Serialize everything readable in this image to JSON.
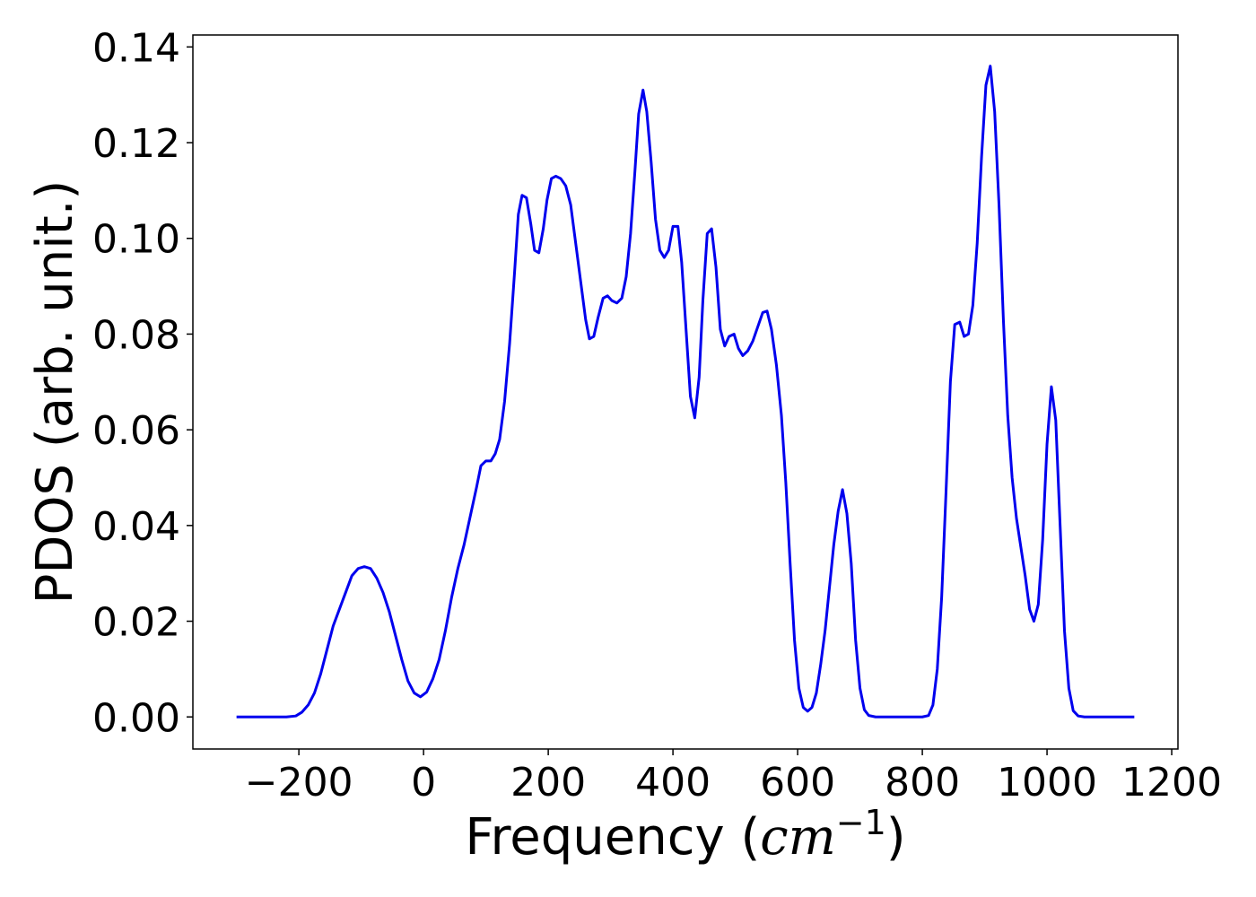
{
  "chart_data": {
    "type": "line",
    "xlabel": "Frequency (",
    "xlabel_unit_base": "cm",
    "xlabel_unit_exp": "−1",
    "xlabel_close": ")",
    "ylabel": "PDOS (arb. unit.)",
    "xlim": [
      -370,
      1210
    ],
    "ylim": [
      -0.0067,
      0.1425
    ],
    "x_ticks": [
      -200,
      0,
      200,
      400,
      600,
      800,
      1000,
      1200
    ],
    "x_tick_labels": [
      "−200",
      "0",
      "200",
      "400",
      "600",
      "800",
      "1000",
      "1200"
    ],
    "y_ticks": [
      0.0,
      0.02,
      0.04,
      0.06,
      0.08,
      0.1,
      0.12,
      0.14
    ],
    "y_tick_labels": [
      "0.00",
      "0.02",
      "0.04",
      "0.06",
      "0.08",
      "0.10",
      "0.12",
      "0.14"
    ],
    "grid": false,
    "series": [
      {
        "color": "#0000ee",
        "points": [
          [
            -300,
            0.0
          ],
          [
            -220,
            0.0
          ],
          [
            -205,
            0.0002
          ],
          [
            -195,
            0.001
          ],
          [
            -185,
            0.0025
          ],
          [
            -175,
            0.005
          ],
          [
            -165,
            0.009
          ],
          [
            -155,
            0.014
          ],
          [
            -145,
            0.019
          ],
          [
            -135,
            0.0225
          ],
          [
            -125,
            0.026
          ],
          [
            -115,
            0.0295
          ],
          [
            -105,
            0.031
          ],
          [
            -95,
            0.0314
          ],
          [
            -85,
            0.031
          ],
          [
            -75,
            0.029
          ],
          [
            -65,
            0.026
          ],
          [
            -55,
            0.022
          ],
          [
            -45,
            0.017
          ],
          [
            -35,
            0.012
          ],
          [
            -25,
            0.0075
          ],
          [
            -15,
            0.005
          ],
          [
            -5,
            0.0042
          ],
          [
            5,
            0.0052
          ],
          [
            15,
            0.008
          ],
          [
            25,
            0.012
          ],
          [
            35,
            0.018
          ],
          [
            45,
            0.025
          ],
          [
            55,
            0.031
          ],
          [
            65,
            0.036
          ],
          [
            75,
            0.042
          ],
          [
            85,
            0.048
          ],
          [
            92,
            0.0525
          ],
          [
            100,
            0.0535
          ],
          [
            108,
            0.0535
          ],
          [
            115,
            0.055
          ],
          [
            122,
            0.058
          ],
          [
            130,
            0.066
          ],
          [
            138,
            0.078
          ],
          [
            146,
            0.093
          ],
          [
            152,
            0.105
          ],
          [
            158,
            0.109
          ],
          [
            165,
            0.1085
          ],
          [
            172,
            0.103
          ],
          [
            178,
            0.0975
          ],
          [
            185,
            0.097
          ],
          [
            192,
            0.102
          ],
          [
            198,
            0.108
          ],
          [
            205,
            0.1125
          ],
          [
            212,
            0.113
          ],
          [
            220,
            0.1125
          ],
          [
            228,
            0.111
          ],
          [
            236,
            0.107
          ],
          [
            244,
            0.099
          ],
          [
            252,
            0.091
          ],
          [
            260,
            0.083
          ],
          [
            266,
            0.079
          ],
          [
            273,
            0.0795
          ],
          [
            280,
            0.0835
          ],
          [
            288,
            0.0875
          ],
          [
            295,
            0.088
          ],
          [
            302,
            0.087
          ],
          [
            310,
            0.0865
          ],
          [
            318,
            0.0875
          ],
          [
            325,
            0.092
          ],
          [
            332,
            0.101
          ],
          [
            339,
            0.114
          ],
          [
            345,
            0.126
          ],
          [
            352,
            0.131
          ],
          [
            358,
            0.1265
          ],
          [
            365,
            0.116
          ],
          [
            372,
            0.104
          ],
          [
            379,
            0.0975
          ],
          [
            386,
            0.096
          ],
          [
            393,
            0.0975
          ],
          [
            400,
            0.1025
          ],
          [
            408,
            0.1025
          ],
          [
            414,
            0.095
          ],
          [
            421,
            0.081
          ],
          [
            428,
            0.067
          ],
          [
            435,
            0.0625
          ],
          [
            442,
            0.071
          ],
          [
            448,
            0.087
          ],
          [
            455,
            0.101
          ],
          [
            462,
            0.102
          ],
          [
            469,
            0.094
          ],
          [
            476,
            0.081
          ],
          [
            483,
            0.0775
          ],
          [
            490,
            0.0795
          ],
          [
            498,
            0.08
          ],
          [
            505,
            0.077
          ],
          [
            512,
            0.0755
          ],
          [
            520,
            0.0765
          ],
          [
            528,
            0.0785
          ],
          [
            536,
            0.0815
          ],
          [
            544,
            0.0845
          ],
          [
            551,
            0.0848
          ],
          [
            558,
            0.081
          ],
          [
            566,
            0.0735
          ],
          [
            574,
            0.063
          ],
          [
            581,
            0.049
          ],
          [
            588,
            0.032
          ],
          [
            595,
            0.016
          ],
          [
            602,
            0.006
          ],
          [
            609,
            0.002
          ],
          [
            616,
            0.0012
          ],
          [
            623,
            0.002
          ],
          [
            630,
            0.005
          ],
          [
            637,
            0.011
          ],
          [
            644,
            0.018
          ],
          [
            651,
            0.027
          ],
          [
            658,
            0.036
          ],
          [
            665,
            0.043
          ],
          [
            672,
            0.0475
          ],
          [
            679,
            0.0425
          ],
          [
            686,
            0.032
          ],
          [
            693,
            0.016
          ],
          [
            700,
            0.006
          ],
          [
            707,
            0.0015
          ],
          [
            714,
            0.0003
          ],
          [
            725,
            0.0
          ],
          [
            800,
            0.0
          ],
          [
            810,
            0.0003
          ],
          [
            817,
            0.0025
          ],
          [
            824,
            0.01
          ],
          [
            831,
            0.025
          ],
          [
            838,
            0.047
          ],
          [
            845,
            0.07
          ],
          [
            852,
            0.082
          ],
          [
            860,
            0.0825
          ],
          [
            867,
            0.0795
          ],
          [
            874,
            0.08
          ],
          [
            881,
            0.086
          ],
          [
            888,
            0.099
          ],
          [
            895,
            0.117
          ],
          [
            902,
            0.132
          ],
          [
            909,
            0.136
          ],
          [
            916,
            0.1265
          ],
          [
            923,
            0.107
          ],
          [
            930,
            0.083
          ],
          [
            937,
            0.063
          ],
          [
            944,
            0.05
          ],
          [
            951,
            0.0415
          ],
          [
            958,
            0.0355
          ],
          [
            965,
            0.0295
          ],
          [
            972,
            0.0225
          ],
          [
            979,
            0.02
          ],
          [
            986,
            0.0235
          ],
          [
            993,
            0.037
          ],
          [
            1000,
            0.057
          ],
          [
            1007,
            0.069
          ],
          [
            1014,
            0.062
          ],
          [
            1021,
            0.04
          ],
          [
            1028,
            0.018
          ],
          [
            1035,
            0.006
          ],
          [
            1042,
            0.0013
          ],
          [
            1050,
            0.0002
          ],
          [
            1060,
            0.0
          ],
          [
            1140,
            0.0
          ]
        ]
      }
    ]
  }
}
